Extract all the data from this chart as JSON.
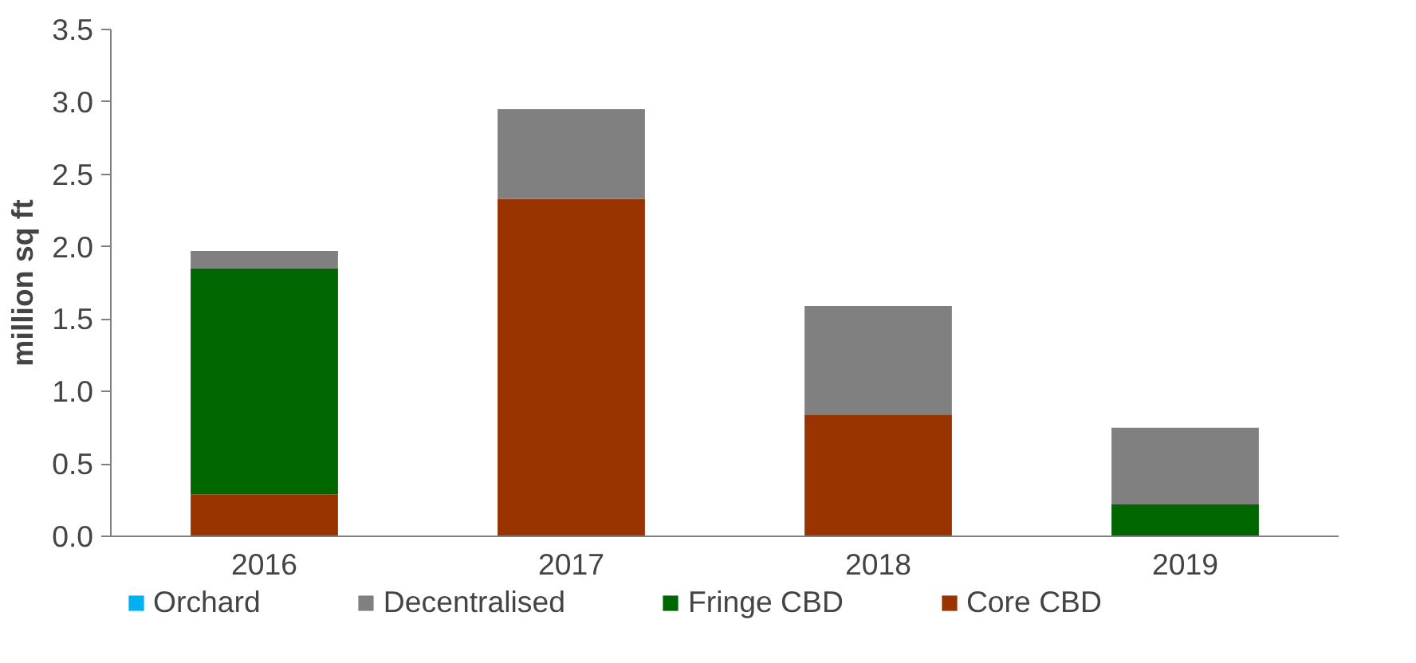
{
  "chart_data": {
    "type": "bar",
    "stacked": true,
    "ylabel": "million sq ft",
    "categories": [
      "2016",
      "2017",
      "2018",
      "2019"
    ],
    "series": [
      {
        "name": "Core CBD",
        "color": "#993300",
        "values": [
          0.29,
          2.33,
          0.84,
          0
        ]
      },
      {
        "name": "Fringe CBD",
        "color": "#006600",
        "values": [
          1.56,
          0,
          0,
          0.22
        ]
      },
      {
        "name": "Decentralised",
        "color": "#808080",
        "values": [
          0.12,
          0.62,
          0.75,
          0.53
        ]
      },
      {
        "name": "Orchard",
        "color": "#00b0f0",
        "values": [
          0,
          0,
          0,
          0
        ]
      }
    ],
    "ylim": [
      0,
      3.5
    ],
    "yticks": [
      {
        "value": 0,
        "label": "0.0"
      },
      {
        "value": 0.5,
        "label": "0.5"
      },
      {
        "value": 1,
        "label": "1.0"
      },
      {
        "value": 1.5,
        "label": "1.5"
      },
      {
        "value": 2,
        "label": "2.0"
      },
      {
        "value": 2.5,
        "label": "2.5"
      },
      {
        "value": 3,
        "label": "3.0"
      },
      {
        "value": 3.5,
        "label": "3.5"
      }
    ],
    "grid": false,
    "legend": "bottom"
  }
}
